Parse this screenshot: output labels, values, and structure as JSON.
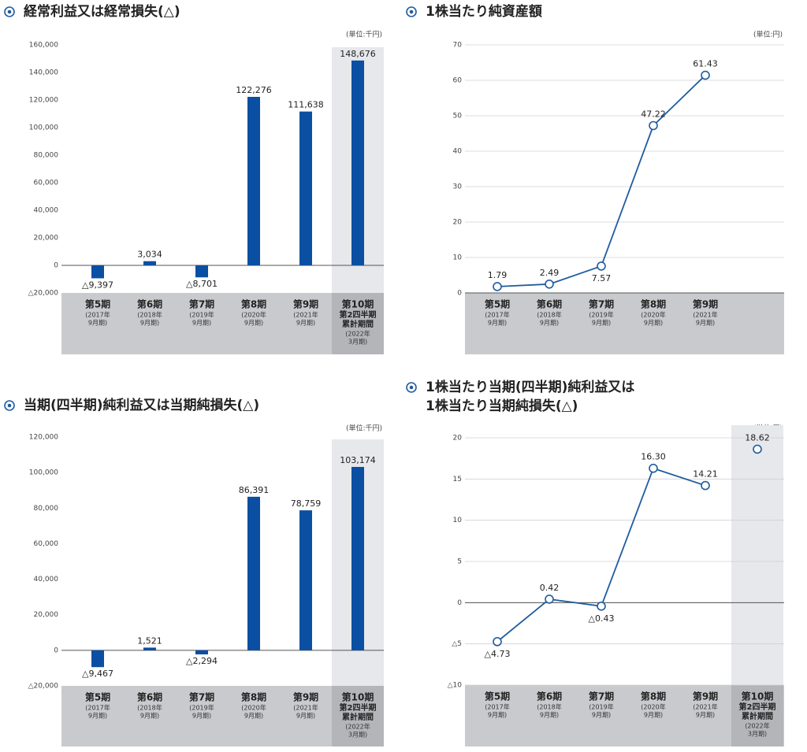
{
  "chart_data": [
    {
      "type": "bar",
      "title": "経常利益又は経常損失(△)",
      "unit": "(単位:千円)",
      "categories": [
        "第5期",
        "第6期",
        "第7期",
        "第8期",
        "第9期",
        "第10期"
      ],
      "category_details": [
        [
          "(2017年",
          "9月期)"
        ],
        [
          "(2018年",
          "9月期)"
        ],
        [
          "(2019年",
          "9月期)"
        ],
        [
          "(2020年",
          "9月期)"
        ],
        [
          "(2021年",
          "9月期)"
        ],
        [
          "第2四半期",
          "累計期間",
          "(2022年",
          "3月期)"
        ]
      ],
      "values": [
        -9397,
        3034,
        -8701,
        122276,
        111638,
        148676
      ],
      "value_labels": [
        "△9,397",
        "3,034",
        "△8,701",
        "122,276",
        "111,638",
        "148,676"
      ],
      "color": "#0b4fa3",
      "ylim": [
        -20000,
        160000
      ],
      "yticks": [
        {
          "value": -20000,
          "label": "△20,000"
        },
        0,
        {
          "value": 20000,
          "label": "20,000"
        },
        {
          "value": 40000,
          "label": "40,000"
        },
        {
          "value": 60000,
          "label": "60,000"
        },
        {
          "value": 80000,
          "label": "80,000"
        },
        {
          "value": 100000,
          "label": "100,000"
        },
        {
          "value": 120000,
          "label": "120,000"
        },
        {
          "value": 140000,
          "label": "140,000"
        },
        {
          "value": 160000,
          "label": "160,000"
        }
      ],
      "grid": false
    },
    {
      "type": "line",
      "title": "1株当たり純資産額",
      "unit": "(単位:円)",
      "categories": [
        "第5期",
        "第6期",
        "第7期",
        "第8期",
        "第9期"
      ],
      "category_details": [
        [
          "(2017年",
          "9月期)"
        ],
        [
          "(2018年",
          "9月期)"
        ],
        [
          "(2019年",
          "9月期)"
        ],
        [
          "(2020年",
          "9月期)"
        ],
        [
          "(2021年",
          "9月期)"
        ]
      ],
      "values": [
        1.79,
        2.49,
        7.57,
        47.22,
        61.43
      ],
      "color": "#1f5c9e",
      "ylim": [
        0,
        70
      ],
      "yticks": [
        0,
        10,
        20,
        30,
        40,
        50,
        60,
        70
      ],
      "grid": true
    },
    {
      "type": "bar",
      "title": "当期(四半期)純利益又は当期純損失(△)",
      "unit": "(単位:千円)",
      "categories": [
        "第5期",
        "第6期",
        "第7期",
        "第8期",
        "第9期",
        "第10期"
      ],
      "category_details": [
        [
          "(2017年",
          "9月期)"
        ],
        [
          "(2018年",
          "9月期)"
        ],
        [
          "(2019年",
          "9月期)"
        ],
        [
          "(2020年",
          "9月期)"
        ],
        [
          "(2021年",
          "9月期)"
        ],
        [
          "第2四半期",
          "累計期間",
          "(2022年",
          "3月期)"
        ]
      ],
      "values": [
        -9467,
        1521,
        -2294,
        86391,
        78759,
        103174
      ],
      "value_labels": [
        "△9,467",
        "1,521",
        "△2,294",
        "86,391",
        "78,759",
        "103,174"
      ],
      "color": "#0b4fa3",
      "ylim": [
        -20000,
        120000
      ],
      "yticks": [
        {
          "value": -20000,
          "label": "△20,000"
        },
        0,
        {
          "value": 20000,
          "label": "20,000"
        },
        {
          "value": 40000,
          "label": "40,000"
        },
        {
          "value": 60000,
          "label": "60,000"
        },
        {
          "value": 80000,
          "label": "80,000"
        },
        {
          "value": 100000,
          "label": "100,000"
        },
        {
          "value": 120000,
          "label": "120,000"
        }
      ],
      "grid": false
    },
    {
      "type": "line",
      "title": [
        "1株当たり当期(四半期)純利益又は",
        "1株当たり当期純損失(△)"
      ],
      "unit": "(単位:円)",
      "categories": [
        "第5期",
        "第6期",
        "第7期",
        "第8期",
        "第9期",
        "第10期"
      ],
      "category_details": [
        [
          "(2017年",
          "9月期)"
        ],
        [
          "(2018年",
          "9月期)"
        ],
        [
          "(2019年",
          "9月期)"
        ],
        [
          "(2020年",
          "9月期)"
        ],
        [
          "(2021年",
          "9月期)"
        ],
        [
          "第2四半期",
          "累計期間",
          "(2022年",
          "3月期)"
        ]
      ],
      "series": [
        {
          "values": [
            -4.73,
            0.42,
            -0.43,
            16.3,
            14.21,
            null
          ],
          "value_labels": [
            "△4.73",
            "0.42",
            "△0.43",
            "16.30",
            "14.21",
            null
          ]
        },
        {
          "values": [
            null,
            null,
            null,
            null,
            null,
            18.62
          ],
          "value_labels": [
            null,
            null,
            null,
            null,
            null,
            "18.62"
          ]
        }
      ],
      "color": "#1f5c9e",
      "ylim": [
        -10,
        20
      ],
      "yticks": [
        {
          "value": -10,
          "label": "△10"
        },
        {
          "value": -5,
          "label": "△5"
        },
        0,
        5,
        10,
        15,
        20
      ],
      "grid": true
    }
  ]
}
